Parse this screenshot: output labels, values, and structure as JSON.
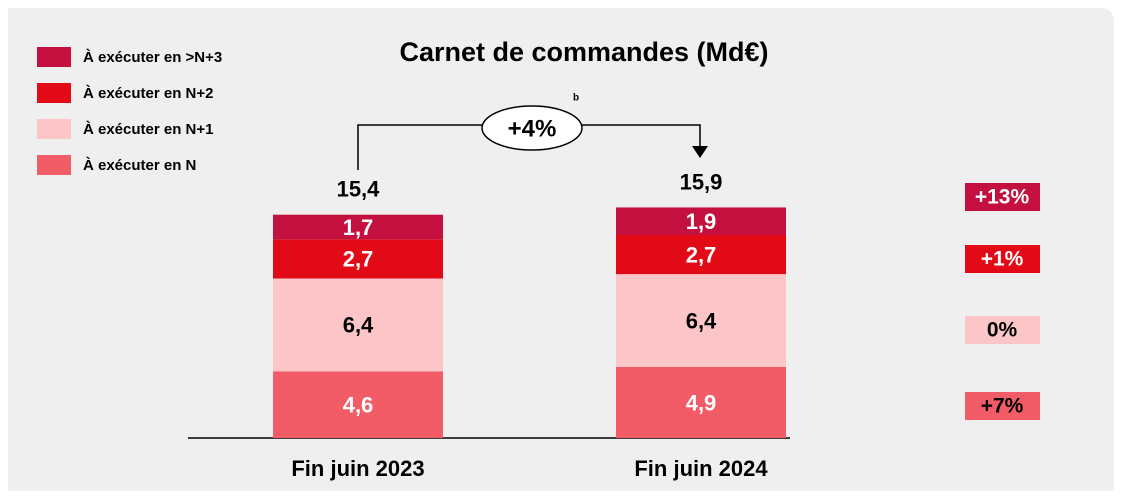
{
  "chart_data": {
    "type": "bar",
    "stacked": true,
    "title": "Carnet de commandes (Md€)",
    "categories": [
      "Fin juin 2023",
      "Fin juin 2024"
    ],
    "series": [
      {
        "name": "À exécuter en N",
        "color": "#f25c66",
        "values": [
          4.6,
          4.9
        ],
        "value_labels": [
          "4,6",
          "4,9"
        ],
        "change": "+7%"
      },
      {
        "name": "À exécuter en N+1",
        "color": "#fcc5c8",
        "values": [
          6.4,
          6.4
        ],
        "value_labels": [
          "6,4",
          "6,4"
        ],
        "change": "0%"
      },
      {
        "name": "À exécuter en N+2",
        "color": "#e20a16",
        "values": [
          2.7,
          2.7
        ],
        "value_labels": [
          "2,7",
          "2,7"
        ],
        "change": "+1%"
      },
      {
        "name": "À exécuter en >N+3",
        "color": "#c3103f",
        "values": [
          1.7,
          1.9
        ],
        "value_labels": [
          "1,7",
          "1,9"
        ],
        "change": "+13%"
      }
    ],
    "totals": [
      15.4,
      15.9
    ],
    "total_labels": [
      "15,4",
      "15,9"
    ],
    "annotation": {
      "text": "+4%",
      "note": "b"
    },
    "legend": "top-left"
  }
}
